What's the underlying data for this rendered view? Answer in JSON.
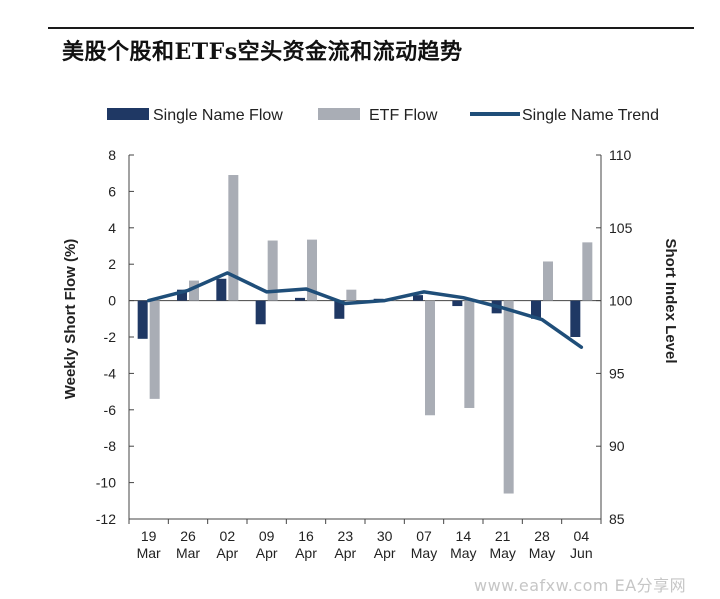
{
  "header": {
    "title": "美股个股和ETFs空头资金流和流动趋势"
  },
  "watermark": "www.eafxw.com  EA分享网",
  "chart_data": {
    "type": "bar",
    "categories": [
      "19 Mar",
      "26 Mar",
      "02 Apr",
      "09 Apr",
      "16 Apr",
      "23 Apr",
      "30 Apr",
      "07 May",
      "14 May",
      "21 May",
      "28 May",
      "04 Jun"
    ],
    "category_lines": [
      [
        "19",
        "Mar"
      ],
      [
        "26",
        "Mar"
      ],
      [
        "02",
        "Apr"
      ],
      [
        "09",
        "Apr"
      ],
      [
        "16",
        "Apr"
      ],
      [
        "23",
        "Apr"
      ],
      [
        "30",
        "Apr"
      ],
      [
        "07",
        "May"
      ],
      [
        "14",
        "May"
      ],
      [
        "21",
        "May"
      ],
      [
        "28",
        "May"
      ],
      [
        "04",
        "Jun"
      ]
    ],
    "series": [
      {
        "name": "Single Name Flow",
        "kind": "bar",
        "axis": "left",
        "color": "#1f3864",
        "values": [
          -2.1,
          0.6,
          1.2,
          -1.3,
          0.15,
          -1.0,
          0.1,
          0.3,
          -0.3,
          -0.7,
          -1.0,
          -2.0
        ]
      },
      {
        "name": "ETF Flow",
        "kind": "bar",
        "axis": "left",
        "color": "#a9adb5",
        "values": [
          -5.4,
          1.1,
          6.9,
          3.3,
          3.35,
          0.6,
          0.1,
          -6.3,
          -5.9,
          -10.6,
          2.15,
          3.2
        ]
      },
      {
        "name": "Single Name Trend",
        "kind": "line",
        "axis": "right",
        "color": "#1f4e79",
        "values": [
          100.0,
          100.7,
          101.9,
          100.6,
          100.8,
          99.8,
          100.0,
          100.6,
          100.2,
          99.5,
          98.7,
          96.8
        ]
      }
    ],
    "ylabel": "Weekly Short Flow (%)",
    "ylim": [
      -12,
      8
    ],
    "yticks": [
      8,
      6,
      4,
      2,
      0,
      -2,
      -4,
      -6,
      -8,
      -10,
      -12
    ],
    "y2label": "Short Index Level",
    "y2lim": [
      85,
      110
    ],
    "y2ticks": [
      110,
      105,
      100,
      95,
      90,
      85
    ],
    "grid": false,
    "legend_position": "top"
  }
}
